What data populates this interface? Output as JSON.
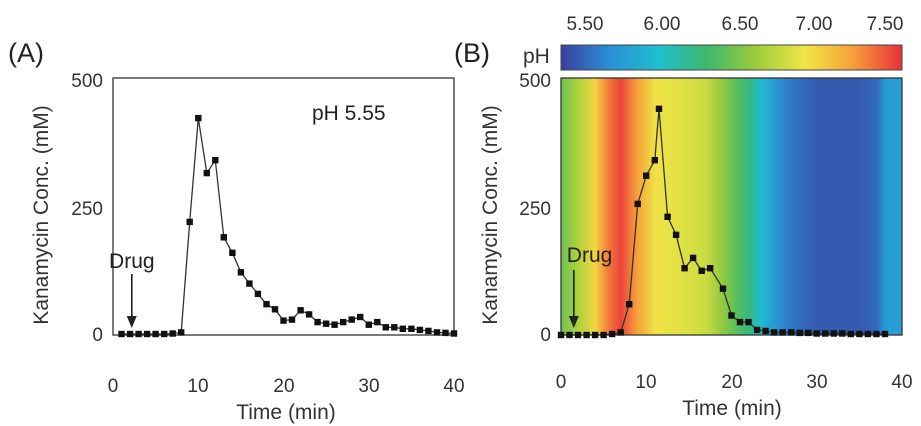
{
  "chart_data": [
    {
      "type": "line",
      "panel_label": "(A)",
      "annotation": "pH 5.55",
      "xlabel": "Time (min)",
      "ylabel": "Kanamycin Conc. (mM)",
      "xlim": [
        0,
        40
      ],
      "ylim": [
        0,
        500
      ],
      "xticks": [
        0,
        10,
        20,
        30,
        40
      ],
      "yticks": [
        0,
        250,
        500
      ],
      "marker_label": "Drug",
      "marker_x": 2.2,
      "series": [
        {
          "x": [
            1,
            2,
            3,
            4,
            5,
            6,
            7,
            8,
            9,
            10,
            11,
            12,
            13,
            14,
            15,
            16,
            17,
            18,
            19,
            20,
            21,
            22,
            23,
            24,
            25,
            26,
            27,
            28,
            29,
            30,
            31,
            32,
            33,
            34,
            35,
            36,
            37,
            38,
            39,
            40
          ],
          "y": [
            2,
            2,
            2,
            2,
            2,
            2,
            3,
            5,
            220,
            422,
            315,
            340,
            190,
            160,
            122,
            100,
            80,
            60,
            50,
            28,
            30,
            48,
            40,
            25,
            22,
            20,
            25,
            30,
            35,
            20,
            25,
            15,
            15,
            12,
            12,
            10,
            8,
            5,
            4,
            3
          ]
        }
      ]
    },
    {
      "type": "line",
      "panel_label": "(B)",
      "xlabel": "Time (min)",
      "ylabel": "Kanamycin Conc. (mM)",
      "xlim": [
        0,
        40
      ],
      "ylim": [
        0,
        500
      ],
      "xticks": [
        0,
        10,
        20,
        30,
        40
      ],
      "yticks": [
        0,
        250,
        500
      ],
      "marker_label": "Drug",
      "marker_x": 1.5,
      "colorbar": {
        "label": "pH",
        "ticks": [
          "5.50",
          "6.00",
          "6.50",
          "7.00",
          "7.50"
        ],
        "range": [
          5.5,
          7.5
        ],
        "colors": [
          "#3a3f9c",
          "#2b8fd6",
          "#1fbfd0",
          "#3db86a",
          "#9ccc3a",
          "#f0e646",
          "#f6a03a",
          "#e8303a"
        ]
      },
      "background_ph": {
        "x": [
          0,
          2,
          4,
          5.5,
          7,
          9,
          11,
          13,
          15,
          17,
          19,
          20.5,
          22,
          23.5,
          25,
          27,
          30,
          35,
          37,
          38,
          40
        ],
        "ph": [
          6.5,
          6.7,
          7.0,
          7.3,
          7.45,
          7.2,
          6.95,
          6.9,
          6.85,
          6.8,
          6.6,
          6.45,
          6.3,
          6.05,
          5.85,
          5.7,
          5.6,
          5.6,
          5.65,
          5.85,
          5.9
        ]
      },
      "series": [
        {
          "x": [
            0,
            1,
            2,
            3,
            4,
            5,
            6,
            7,
            8,
            9,
            10,
            11,
            11.5,
            12.5,
            13.5,
            14.5,
            15.5,
            16.5,
            17.5,
            19,
            20,
            21,
            22,
            23,
            24,
            25,
            26,
            27,
            28,
            29,
            30,
            31,
            32,
            33,
            34,
            35,
            36,
            37,
            38
          ],
          "y": [
            0,
            0,
            0,
            0,
            0,
            0,
            2,
            5,
            60,
            255,
            310,
            340,
            440,
            230,
            195,
            130,
            150,
            125,
            130,
            90,
            38,
            25,
            25,
            10,
            8,
            5,
            5,
            5,
            4,
            4,
            3,
            3,
            3,
            3,
            2,
            2,
            2,
            2,
            2
          ]
        }
      ]
    }
  ]
}
